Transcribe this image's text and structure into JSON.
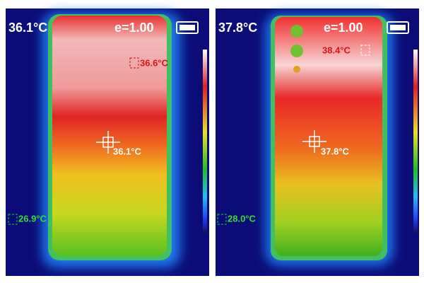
{
  "panels": [
    {
      "header_temp": "36.1°C",
      "emissivity": "e=1.00",
      "max_label": "36.6°C",
      "center_label": "36.1°C",
      "min_label": "26.9°C"
    },
    {
      "header_temp": "37.8°C",
      "emissivity": "e=1.00",
      "max_label": "38.4°C",
      "center_label": "37.8°C",
      "min_label": "28.0°C"
    }
  ]
}
